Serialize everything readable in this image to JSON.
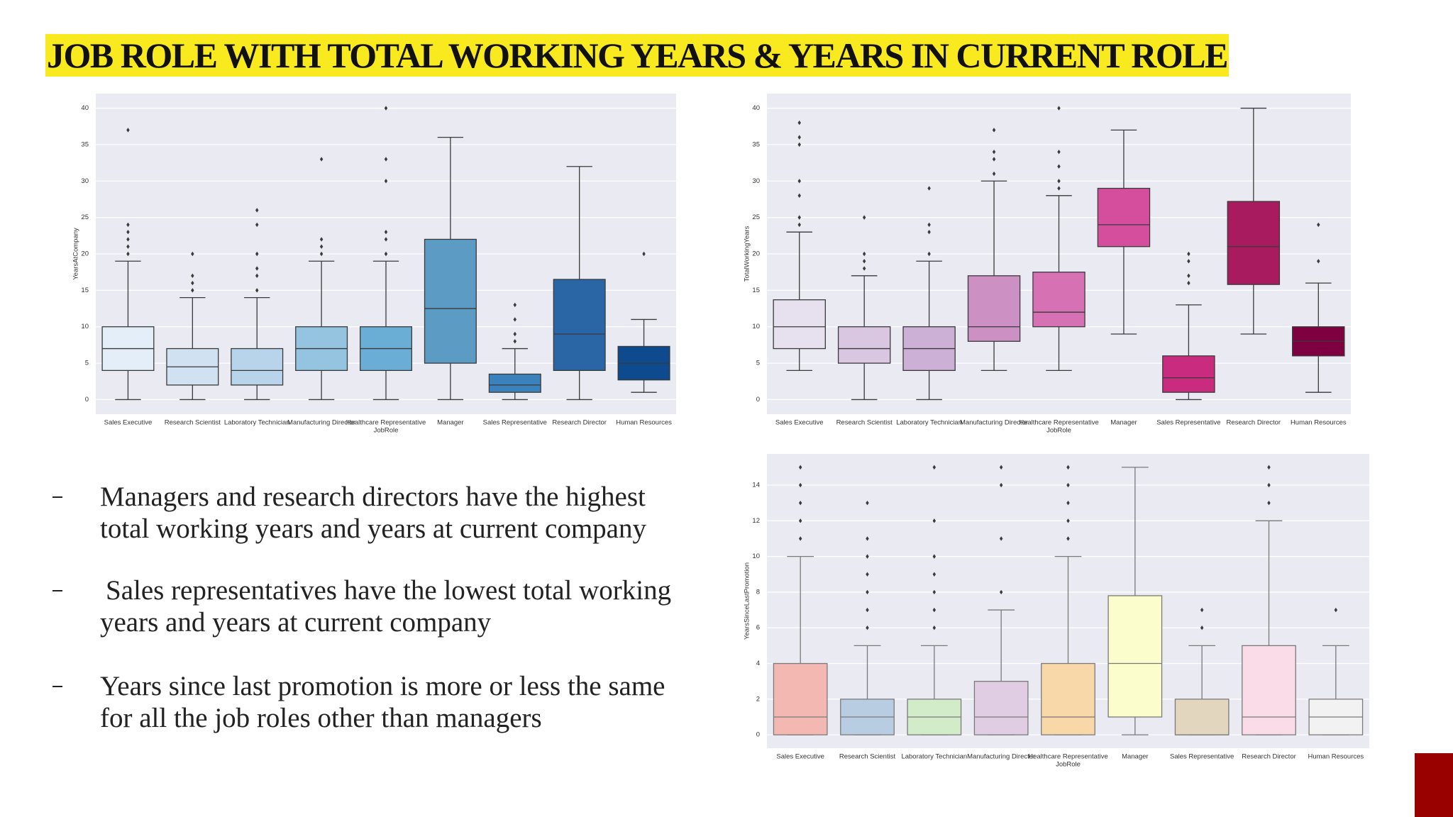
{
  "header": {
    "title": "JOB ROLE WITH TOTAL WORKING YEARS & YEARS IN CURRENT ROLE"
  },
  "bullets": [
    [
      "Managers and research directors have the highest",
      "total working years and years at current company"
    ],
    [
      "Sales representatives have the lowest total working",
      "years and years at current company"
    ],
    [
      "Years since last promotion is more or less the same",
      "for all the job roles other than managers"
    ]
  ],
  "chart_data": [
    {
      "type": "box",
      "xlabel": "JobRole",
      "ylabel": "YearsAtCompany",
      "categories": [
        "Sales Executive",
        "Research Scientist",
        "Laboratory Technician",
        "Manufacturing Director",
        "Healthcare Representative",
        "Manager",
        "Sales Representative",
        "Research Director",
        "Human Resources"
      ],
      "colors": [
        "#e3eef9",
        "#d0e1f2",
        "#b7d4ea",
        "#94c4df",
        "#6aaed6",
        "#5b9bc4",
        "#3b82bd",
        "#2a66a6",
        "#0d4a8e"
      ],
      "edgecolor": "#3a3a3a",
      "grid": true,
      "ylim": [
        -2,
        42
      ],
      "yticks": [
        0,
        5,
        10,
        15,
        20,
        25,
        30,
        35,
        40
      ],
      "boxes": [
        {
          "whislo": 0,
          "q1": 4,
          "med": 7,
          "q3": 10,
          "whishi": 19,
          "fliers": [
            20,
            21,
            22,
            23,
            24,
            37
          ]
        },
        {
          "whislo": 0,
          "q1": 2,
          "med": 4.5,
          "q3": 7,
          "whishi": 14,
          "fliers": [
            15,
            16,
            17,
            20
          ]
        },
        {
          "whislo": 0,
          "q1": 2,
          "med": 4,
          "q3": 7,
          "whishi": 14,
          "fliers": [
            15,
            17,
            18,
            20,
            24,
            26
          ]
        },
        {
          "whislo": 0,
          "q1": 4,
          "med": 7,
          "q3": 10,
          "whishi": 19,
          "fliers": [
            20,
            21,
            22,
            33
          ]
        },
        {
          "whislo": 0,
          "q1": 4,
          "med": 7,
          "q3": 10,
          "whishi": 19,
          "fliers": [
            20,
            22,
            23,
            30,
            33,
            40
          ]
        },
        {
          "whislo": 0,
          "q1": 5,
          "med": 12.5,
          "q3": 22,
          "whishi": 36,
          "fliers": []
        },
        {
          "whislo": 0,
          "q1": 1,
          "med": 2,
          "q3": 3.5,
          "whishi": 7,
          "fliers": [
            8,
            9,
            11,
            13
          ]
        },
        {
          "whislo": 0,
          "q1": 4,
          "med": 9,
          "q3": 16.5,
          "whishi": 32,
          "fliers": []
        },
        {
          "whislo": 1,
          "q1": 2.7,
          "med": 5,
          "q3": 7.3,
          "whishi": 11,
          "fliers": [
            20
          ]
        }
      ]
    },
    {
      "type": "box",
      "xlabel": "JobRole",
      "ylabel": "TotalWorkingYears",
      "categories": [
        "Sales Executive",
        "Research Scientist",
        "Laboratory Technician",
        "Manufacturing Director",
        "Healthcare Representative",
        "Manager",
        "Sales Representative",
        "Research Director",
        "Human Resources"
      ],
      "colors": [
        "#e7e1ef",
        "#d9c6e0",
        "#ccb0d6",
        "#cd90c3",
        "#d672b4",
        "#d54e9e",
        "#c92b7f",
        "#a81b5f",
        "#7f0041"
      ],
      "edgecolor": "#3a3a3a",
      "grid": true,
      "ylim": [
        -2,
        42
      ],
      "yticks": [
        0,
        5,
        10,
        15,
        20,
        25,
        30,
        35,
        40
      ],
      "boxes": [
        {
          "whislo": 4,
          "q1": 7,
          "med": 10,
          "q3": 13.7,
          "whishi": 23,
          "fliers": [
            24,
            25,
            28,
            30,
            35,
            36,
            38
          ]
        },
        {
          "whislo": 0,
          "q1": 5,
          "med": 7,
          "q3": 10,
          "whishi": 17,
          "fliers": [
            18,
            19,
            20,
            25
          ]
        },
        {
          "whislo": 0,
          "q1": 4,
          "med": 7,
          "q3": 10,
          "whishi": 19,
          "fliers": [
            20,
            23,
            24,
            29
          ]
        },
        {
          "whislo": 4,
          "q1": 8,
          "med": 10,
          "q3": 17,
          "whishi": 30,
          "fliers": [
            31,
            33,
            34,
            37
          ]
        },
        {
          "whislo": 4,
          "q1": 10,
          "med": 12,
          "q3": 17.5,
          "whishi": 28,
          "fliers": [
            29,
            30,
            32,
            34,
            40
          ]
        },
        {
          "whislo": 9,
          "q1": 21,
          "med": 24,
          "q3": 29,
          "whishi": 37,
          "fliers": []
        },
        {
          "whislo": 0,
          "q1": 1,
          "med": 3,
          "q3": 6,
          "whishi": 13,
          "fliers": [
            16,
            17,
            19,
            20
          ]
        },
        {
          "whislo": 9,
          "q1": 15.8,
          "med": 21,
          "q3": 27.2,
          "whishi": 40,
          "fliers": []
        },
        {
          "whislo": 1,
          "q1": 6,
          "med": 8,
          "q3": 10,
          "whishi": 16,
          "fliers": [
            19,
            24
          ]
        }
      ]
    },
    {
      "type": "box",
      "xlabel": "JobRole",
      "ylabel": "YearsSinceLastPromotion",
      "categories": [
        "Sales Executive",
        "Research Scientist",
        "Laboratory Technician",
        "Manufacturing Director",
        "Healthcare Representative",
        "Manager",
        "Sales Representative",
        "Research Director",
        "Human Resources"
      ],
      "colors": [
        "#f4b8b3",
        "#b8cde1",
        "#d2ebc9",
        "#e0cce3",
        "#f8d7a9",
        "#fbfdcc",
        "#e2d6bf",
        "#fadbe8",
        "#f2f2f2"
      ],
      "edgecolor": "#7a7a7a",
      "grid": true,
      "ylim": [
        -0.75,
        15.75
      ],
      "yticks": [
        0,
        2,
        4,
        6,
        8,
        10,
        12,
        14
      ],
      "boxes": [
        {
          "whislo": 0,
          "q1": 0,
          "med": 1,
          "q3": 4,
          "whishi": 10,
          "fliers": [
            11,
            12,
            13,
            14,
            15
          ]
        },
        {
          "whislo": 0,
          "q1": 0,
          "med": 1,
          "q3": 2,
          "whishi": 5,
          "fliers": [
            6,
            7,
            8,
            9,
            10,
            11,
            13
          ]
        },
        {
          "whislo": 0,
          "q1": 0,
          "med": 1,
          "q3": 2,
          "whishi": 5,
          "fliers": [
            6,
            7,
            8,
            9,
            10,
            12,
            15
          ]
        },
        {
          "whislo": 0,
          "q1": 0,
          "med": 1,
          "q3": 3,
          "whishi": 7,
          "fliers": [
            8,
            11,
            14,
            15
          ]
        },
        {
          "whislo": 0,
          "q1": 0,
          "med": 1,
          "q3": 4,
          "whishi": 10,
          "fliers": [
            11,
            12,
            13,
            14,
            15
          ]
        },
        {
          "whislo": 0,
          "q1": 1,
          "med": 4,
          "q3": 7.8,
          "whishi": 15,
          "fliers": []
        },
        {
          "whislo": 0,
          "q1": 0,
          "med": 0,
          "q3": 2,
          "whishi": 5,
          "fliers": [
            6,
            7
          ]
        },
        {
          "whislo": 0,
          "q1": 0,
          "med": 1,
          "q3": 5,
          "whishi": 12,
          "fliers": [
            13,
            14,
            15
          ]
        },
        {
          "whislo": 0,
          "q1": 0,
          "med": 1,
          "q3": 2,
          "whishi": 5,
          "fliers": [
            7
          ]
        }
      ]
    }
  ]
}
